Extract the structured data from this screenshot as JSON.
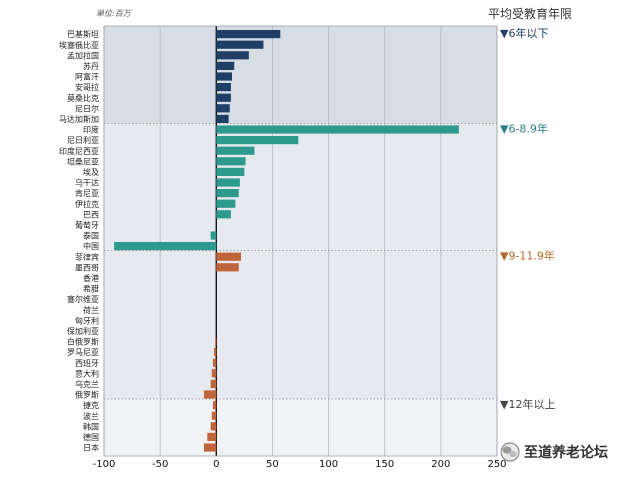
{
  "chart_data": {
    "type": "bar",
    "orientation": "horizontal",
    "unit_label": "单位:百万",
    "legend_title": "平均受教育年限",
    "xlim": [
      -100,
      250
    ],
    "xticks": [
      -100,
      -50,
      0,
      50,
      100,
      150,
      200,
      250
    ],
    "grid": true,
    "groups": [
      {
        "label": "▼6年以下",
        "color": "#1f3f66",
        "label_color": "#1f3f66",
        "categories": [
          "巴基斯坦",
          "埃塞俄比亚",
          "孟加拉国",
          "苏丹",
          "阿富汗",
          "安哥拉",
          "莫桑比克",
          "尼日尔",
          "马达加斯加"
        ],
        "values": [
          57,
          42,
          29,
          16,
          14,
          13,
          13,
          12,
          11
        ]
      },
      {
        "label": "▼6-8.9年",
        "color": "#2c9a8c",
        "label_color": "#2c7f85",
        "categories": [
          "印度",
          "尼日利亚",
          "印度尼西亚",
          "坦桑尼亚",
          "埃及",
          "乌干达",
          "肯尼亚",
          "伊拉克",
          "巴西",
          "葡萄牙",
          "泰国",
          "中国"
        ],
        "values": [
          216,
          73,
          34,
          26,
          25,
          21,
          20,
          17,
          13,
          0,
          -5,
          -91
        ]
      },
      {
        "label": "▼9-11.9年",
        "color": "#c0643a",
        "label_color": "#b06a2a",
        "categories": [
          "菲律宾",
          "墨西哥",
          "香港",
          "希腊",
          "塞尔维亚",
          "荷兰",
          "匈牙利",
          "保加利亚",
          "白俄罗斯",
          "罗马尼亚",
          "西班牙",
          "意大利",
          "乌克兰",
          "俄罗斯"
        ],
        "values": [
          22,
          20,
          0,
          0,
          0,
          0,
          0,
          0,
          -1,
          -2,
          -3,
          -4,
          -5,
          -11
        ]
      },
      {
        "label": "▼12年以上",
        "color": "#c0643a",
        "label_color": "#444444",
        "categories": [
          "捷克",
          "波兰",
          "韩国",
          "德国",
          "日本"
        ],
        "values": [
          -3,
          -4,
          -5,
          -8,
          -11
        ]
      }
    ]
  },
  "watermark": {
    "icon": "wechat-logo-icon",
    "text": "至道养老论坛"
  }
}
